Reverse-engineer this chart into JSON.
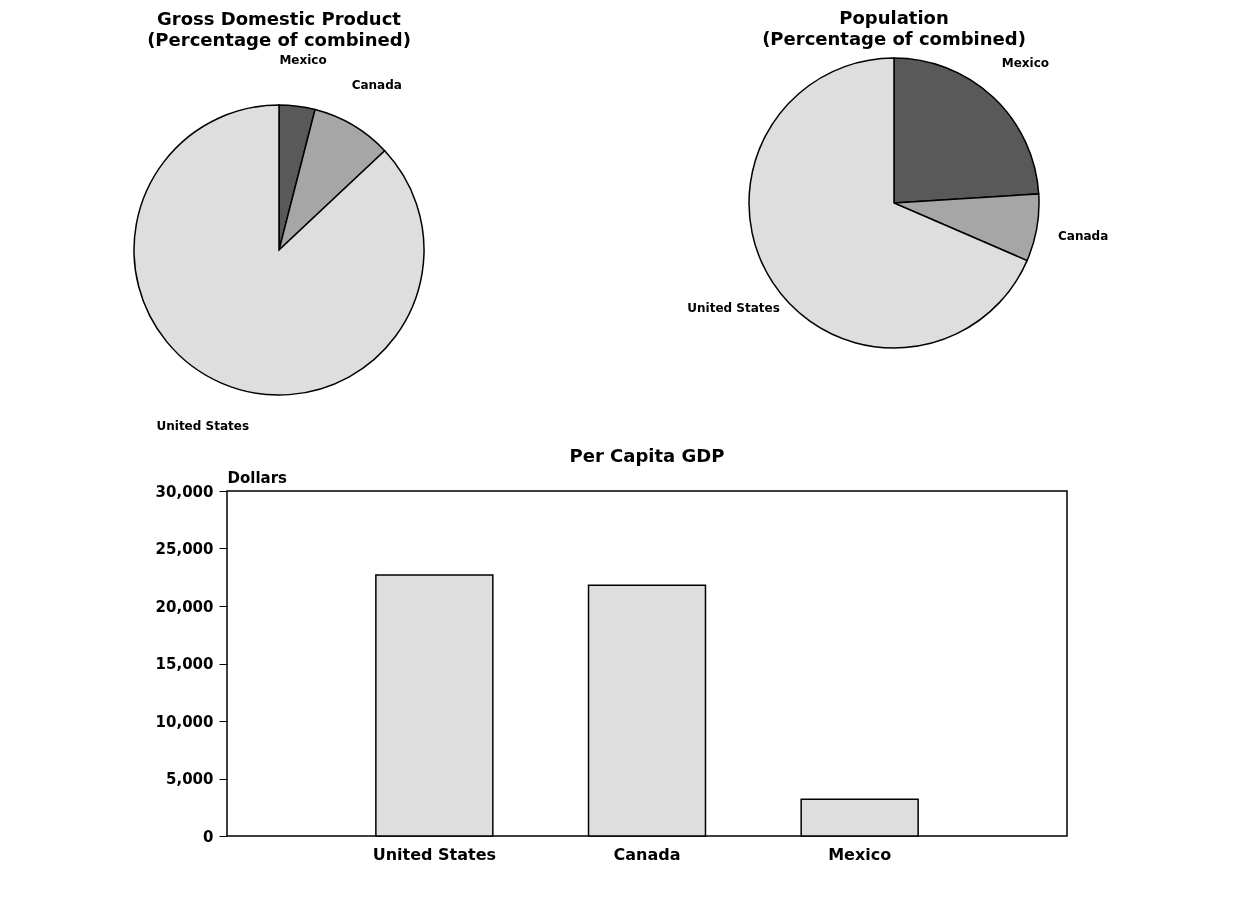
{
  "chart_data": [
    {
      "type": "pie",
      "title": "Gross Domestic Product",
      "subtitle": "(Percentage of combined)",
      "categories": [
        "Mexico",
        "Canada",
        "United States"
      ],
      "values": [
        4,
        9,
        87
      ],
      "colors": [
        "#595959",
        "#a6a6a6",
        "#dedede"
      ]
    },
    {
      "type": "pie",
      "title": "Population",
      "subtitle": "(Percentage of combined)",
      "categories": [
        "Mexico",
        "Canada",
        "United States"
      ],
      "values": [
        24,
        7.5,
        68.5
      ],
      "colors": [
        "#595959",
        "#a6a6a6",
        "#dedede"
      ]
    },
    {
      "type": "bar",
      "title": "Per Capita GDP",
      "ylabel": "Dollars",
      "categories": [
        "United States",
        "Canada",
        "Mexico"
      ],
      "values": [
        22700,
        21800,
        3200
      ],
      "color": "#dedede",
      "ylim": [
        0,
        30000
      ],
      "yticks": [
        0,
        {
          "value": 5000,
          "label": "5,000"
        },
        {
          "value": 10000,
          "label": "10,000"
        },
        {
          "value": 15000,
          "label": "15,000"
        },
        {
          "value": 20000,
          "label": "20,000"
        },
        {
          "value": 25000,
          "label": "25,000"
        },
        {
          "value": 30000,
          "label": "30,000"
        }
      ],
      "grid": false
    }
  ]
}
